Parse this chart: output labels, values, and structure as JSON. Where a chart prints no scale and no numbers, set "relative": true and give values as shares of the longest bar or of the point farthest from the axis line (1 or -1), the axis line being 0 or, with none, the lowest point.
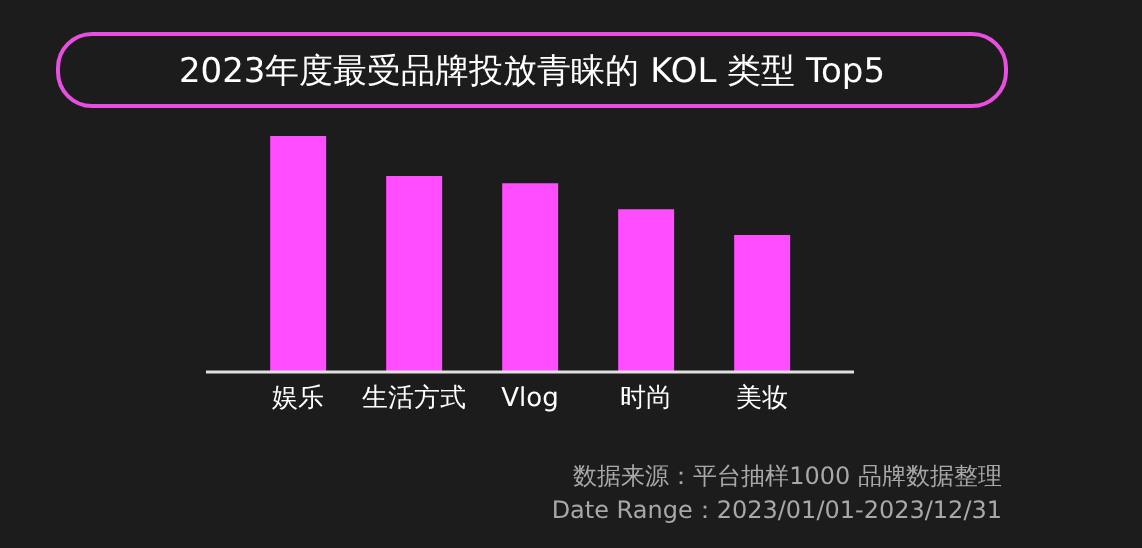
{
  "chart_data": {
    "type": "bar",
    "title": "2023年度最受品牌投放青睐的 KOL 类型 Top5",
    "categories": [
      "娱乐",
      "生活方式",
      "Vlog",
      "时尚",
      "美妆"
    ],
    "values": [
      1,
      0.83,
      0.8,
      0.69,
      0.58
    ],
    "color": "#ff4dff",
    "relative": true,
    "annotations": [
      "数据来源：平台抽样1000 品牌数据整理",
      "Date Range：2023/01/01-2023/12/31"
    ]
  }
}
